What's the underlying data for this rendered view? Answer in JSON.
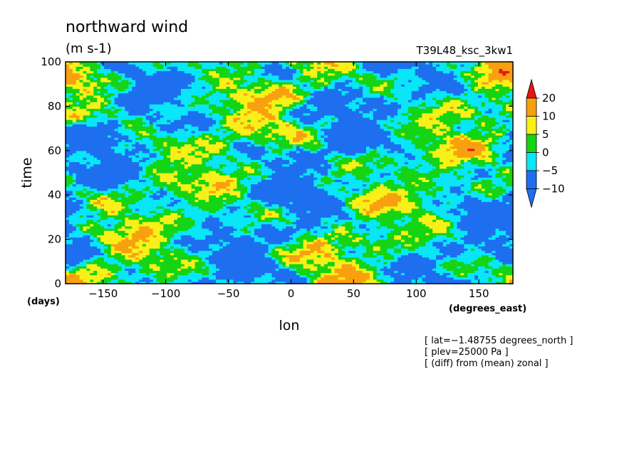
{
  "chart_data": {
    "type": "heatmap",
    "title": "northward wind",
    "units": "(m s-1)",
    "experiment": "T39L48_ksc_3kw1",
    "xlabel": "lon",
    "xunits": "(degrees_east)",
    "ylabel": "time",
    "yunits": "(days)",
    "xlim": [
      -180,
      177.19
    ],
    "ylim": [
      0,
      100
    ],
    "xticks": [
      -150,
      -100,
      -50,
      0,
      50,
      100,
      150
    ],
    "yticks": [
      0,
      20,
      40,
      60,
      80,
      100
    ],
    "colorbar": {
      "levels": [
        -10,
        -5,
        0,
        5,
        10,
        20
      ],
      "labels": [
        "20",
        "10",
        "5",
        "0",
        "−5",
        "−10"
      ],
      "colors": [
        "#1e6ff0",
        "#08e6f8",
        "#14d414",
        "#f8f018",
        "#f8a010",
        "#e81414"
      ],
      "extend": "both"
    },
    "annotations": [
      "[ lat=−1.48755 degrees_north ]",
      "[ plev=25000 Pa ]",
      "[ (diff) from (mean) zonal ]"
    ]
  }
}
